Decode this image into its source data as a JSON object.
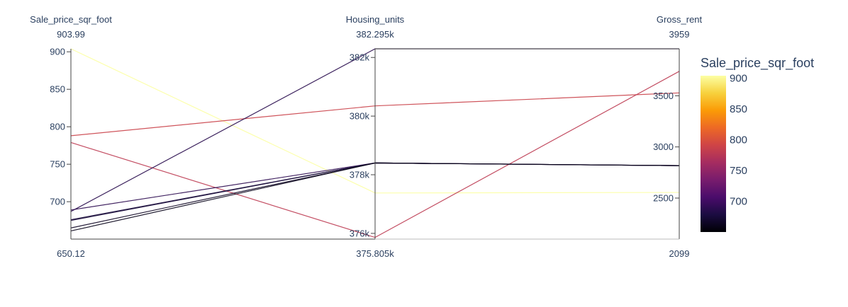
{
  "chart_data": {
    "type": "parallel_coordinates",
    "dimensions": [
      {
        "label": "Sale_price_sqr_foot",
        "range": [
          650.12,
          903.99
        ],
        "range_labels": {
          "top": "903.99",
          "bottom": "650.12"
        },
        "ticks": [
          {
            "value": 700,
            "label": "700"
          },
          {
            "value": 750,
            "label": "750"
          },
          {
            "value": 800,
            "label": "800"
          },
          {
            "value": 850,
            "label": "850"
          },
          {
            "value": 900,
            "label": "900"
          }
        ]
      },
      {
        "label": "Housing_units",
        "range": [
          375805,
          382295
        ],
        "range_labels": {
          "top": "382.295k",
          "bottom": "375.805k"
        },
        "ticks": [
          {
            "value": 376000,
            "label": "376k"
          },
          {
            "value": 378000,
            "label": "378k"
          },
          {
            "value": 380000,
            "label": "380k"
          },
          {
            "value": 382000,
            "label": "382k"
          }
        ]
      },
      {
        "label": "Gross_rent",
        "range": [
          2099,
          3959
        ],
        "range_labels": {
          "top": "3959",
          "bottom": "2099"
        },
        "ticks": [
          {
            "value": 2500,
            "label": "2500"
          },
          {
            "value": 3000,
            "label": "3000"
          },
          {
            "value": 3500,
            "label": "3500"
          }
        ]
      }
    ],
    "records": [
      [
        903.99,
        377378,
        2555
      ],
      [
        788.0,
        380348,
        3528
      ],
      [
        779.0,
        375862,
        3739
      ],
      [
        687.0,
        382295,
        3959
      ],
      [
        689.0,
        378401,
        2817
      ],
      [
        676.0,
        378401,
        2817
      ],
      [
        675.0,
        378401,
        2817
      ],
      [
        665.0,
        378401,
        2817
      ],
      [
        661.0,
        378401,
        2817
      ]
    ],
    "colorscale": {
      "title": "Sale_price_sqr_foot",
      "min": 650.12,
      "max": 903.99,
      "ticks": [
        {
          "value": 700,
          "label": "700"
        },
        {
          "value": 750,
          "label": "750"
        },
        {
          "value": 800,
          "label": "800"
        },
        {
          "value": 850,
          "label": "850"
        },
        {
          "value": 900,
          "label": "900"
        }
      ],
      "stops": [
        "#000004",
        "#1b0c41",
        "#4a0c6b",
        "#781c6d",
        "#a52c60",
        "#cf4446",
        "#ed6925",
        "#fb9b06",
        "#f7d13d",
        "#fcffa4"
      ]
    }
  }
}
